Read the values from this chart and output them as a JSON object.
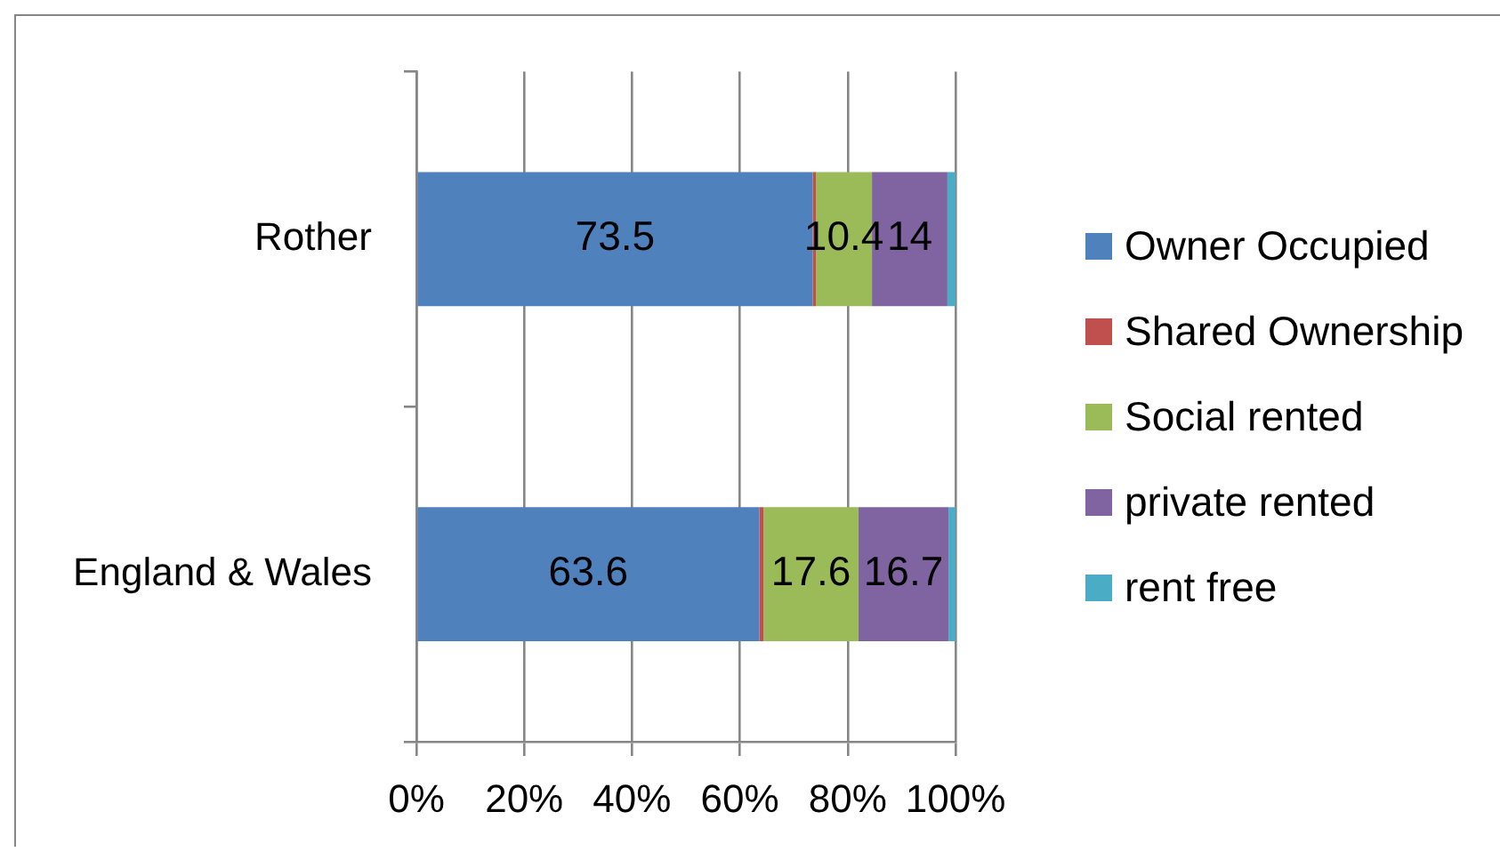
{
  "chart_data": {
    "type": "bar",
    "orientation": "horizontal",
    "stacked": true,
    "categories": [
      "Rother",
      "England & Wales"
    ],
    "series": [
      {
        "name": "Owner Occupied",
        "color": "#4f81bd",
        "values": [
          73.5,
          63.6
        ],
        "value_labels": [
          "73.5",
          "63.6"
        ]
      },
      {
        "name": "Shared Ownership",
        "color": "#c0504d",
        "values": [
          0.6,
          0.8
        ]
      },
      {
        "name": "Social rented",
        "color": "#9bbb59",
        "values": [
          10.4,
          17.6
        ],
        "value_labels": [
          "10.4",
          "17.6"
        ]
      },
      {
        "name": "private rented",
        "color": "#8064a2",
        "values": [
          14,
          16.7
        ],
        "value_labels": [
          "14",
          "16.7"
        ]
      },
      {
        "name": "rent free",
        "color": "#4bacc6",
        "values": [
          1.5,
          1.3
        ]
      }
    ],
    "xlim": [
      0,
      100
    ],
    "xticks": [
      {
        "value": 0,
        "label": "0%"
      },
      {
        "value": 20,
        "label": "20%"
      },
      {
        "value": 40,
        "label": "40%"
      },
      {
        "value": 60,
        "label": "60%"
      },
      {
        "value": 80,
        "label": "80%"
      },
      {
        "value": 100,
        "label": "100%"
      }
    ],
    "grid": "x",
    "legend": "right"
  }
}
